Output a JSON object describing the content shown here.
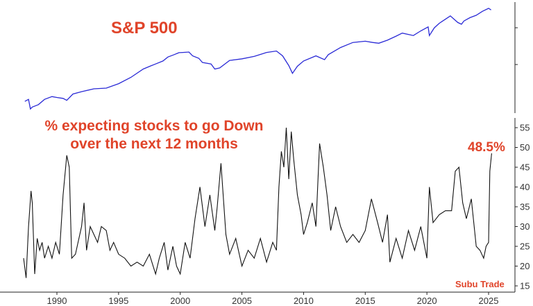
{
  "chart_data": [
    {
      "type": "line",
      "title": "S&P 500",
      "log_scale": true,
      "color": "#2a2ad6",
      "xlim": [
        1985,
        2027
      ],
      "series": [
        {
          "name": "S&P 500",
          "x": [
            1987.4,
            1987.7,
            1987.85,
            1988.0,
            1988.5,
            1989.0,
            1989.6,
            1990.0,
            1990.5,
            1990.8,
            1991.3,
            1992.0,
            1993.0,
            1994.0,
            1995.0,
            1996.0,
            1997.0,
            1997.6,
            1998.0,
            1998.6,
            1999.0,
            1999.5,
            1999.9,
            2000.2,
            2000.7,
            2001.0,
            2001.5,
            2001.8,
            2002.5,
            2002.8,
            2003.2,
            2004.0,
            2005.0,
            2006.0,
            2007.0,
            2007.8,
            2008.3,
            2008.8,
            2009.1,
            2009.5,
            2010.0,
            2011.0,
            2011.7,
            2012.0,
            2013.0,
            2014.0,
            2015.0,
            2015.6,
            2016.1,
            2016.8,
            2017.5,
            2018.0,
            2018.9,
            2019.5,
            2020.1,
            2020.2,
            2020.6,
            2021.0,
            2021.9,
            2022.5,
            2022.8,
            2023.0,
            2023.5,
            2024.0,
            2024.5,
            2025.0,
            2025.2
          ],
          "values": [
            300,
            320,
            235,
            250,
            270,
            320,
            350,
            340,
            330,
            310,
            380,
            410,
            450,
            460,
            530,
            650,
            850,
            940,
            1000,
            1100,
            1250,
            1350,
            1440,
            1450,
            1470,
            1300,
            1200,
            1050,
            1000,
            850,
            880,
            1120,
            1180,
            1280,
            1450,
            1520,
            1300,
            950,
            740,
            930,
            1100,
            1300,
            1150,
            1350,
            1700,
            2000,
            2080,
            2000,
            1950,
            2150,
            2450,
            2700,
            2500,
            2900,
            3300,
            2500,
            3200,
            3700,
            4700,
            3800,
            3600,
            4000,
            4450,
            4800,
            5450,
            6000,
            5700
          ]
        }
      ]
    },
    {
      "type": "line",
      "title": "% expecting stocks to go Down over the next 12 months",
      "title_lines": [
        "% expecting stocks to go Down",
        "over the next 12 months"
      ],
      "color": "#111111",
      "xlim": [
        1985,
        2027
      ],
      "ylim": [
        15,
        57
      ],
      "x_ticks": [
        1990,
        1995,
        2000,
        2005,
        2010,
        2015,
        2020,
        2025
      ],
      "y_ticks": [
        15,
        20,
        25,
        30,
        35,
        40,
        45,
        50,
        55
      ],
      "annotation": "48.5%",
      "series": [
        {
          "name": "% expecting stocks to go Down",
          "x": [
            1987.3,
            1987.5,
            1987.7,
            1987.9,
            1988.0,
            1988.2,
            1988.4,
            1988.6,
            1988.8,
            1989.0,
            1989.3,
            1989.6,
            1989.9,
            1990.2,
            1990.5,
            1990.8,
            1991.0,
            1991.2,
            1991.5,
            1992.0,
            1992.2,
            1992.4,
            1992.7,
            1993.0,
            1993.3,
            1993.6,
            1994.0,
            1994.3,
            1994.6,
            1995.0,
            1995.5,
            1996.0,
            1996.5,
            1997.0,
            1997.5,
            1998.0,
            1998.3,
            1998.7,
            1999.0,
            1999.4,
            1999.7,
            2000.0,
            2000.4,
            2000.8,
            2001.2,
            2001.6,
            2002.0,
            2002.4,
            2002.8,
            2003.0,
            2003.3,
            2003.7,
            2004.0,
            2004.5,
            2005.0,
            2005.5,
            2006.0,
            2006.5,
            2007.0,
            2007.5,
            2007.8,
            2008.0,
            2008.2,
            2008.4,
            2008.6,
            2008.8,
            2009.0,
            2009.2,
            2009.5,
            2009.8,
            2010.0,
            2010.3,
            2010.7,
            2011.0,
            2011.3,
            2011.6,
            2011.9,
            2012.2,
            2012.6,
            2013.0,
            2013.5,
            2014.0,
            2014.5,
            2015.0,
            2015.5,
            2016.0,
            2016.4,
            2016.8,
            2017.0,
            2017.5,
            2018.0,
            2018.5,
            2019.0,
            2019.5,
            2020.0,
            2020.2,
            2020.5,
            2021.0,
            2021.5,
            2022.0,
            2022.3,
            2022.6,
            2022.9,
            2023.2,
            2023.6,
            2024.0,
            2024.3,
            2024.6,
            2024.8,
            2025.0,
            2025.1,
            2025.25
          ],
          "values": [
            22,
            17,
            30,
            39,
            36,
            18,
            27,
            24,
            26,
            22,
            25,
            22,
            26,
            23,
            38,
            48,
            45,
            22,
            23,
            30,
            36,
            24,
            30,
            28,
            26,
            30,
            29,
            24,
            26,
            23,
            22,
            20,
            21,
            20,
            23,
            18,
            22,
            26,
            19,
            25,
            20,
            18,
            26,
            22,
            32,
            40,
            30,
            38,
            29,
            35,
            46,
            28,
            23,
            27,
            20,
            24,
            22,
            27,
            21,
            26,
            24,
            40,
            49,
            45,
            55,
            42,
            54,
            47,
            38,
            33,
            28,
            31,
            36,
            30,
            51,
            45,
            38,
            29,
            35,
            30,
            26,
            28,
            26,
            29,
            37,
            31,
            26,
            33,
            21,
            27,
            22,
            29,
            24,
            30,
            22,
            40,
            31,
            33,
            34,
            34,
            44,
            45,
            36,
            32,
            37,
            25,
            24,
            22,
            25,
            26,
            44,
            48.5
          ]
        }
      ]
    }
  ],
  "watermark": "Subu Trade"
}
